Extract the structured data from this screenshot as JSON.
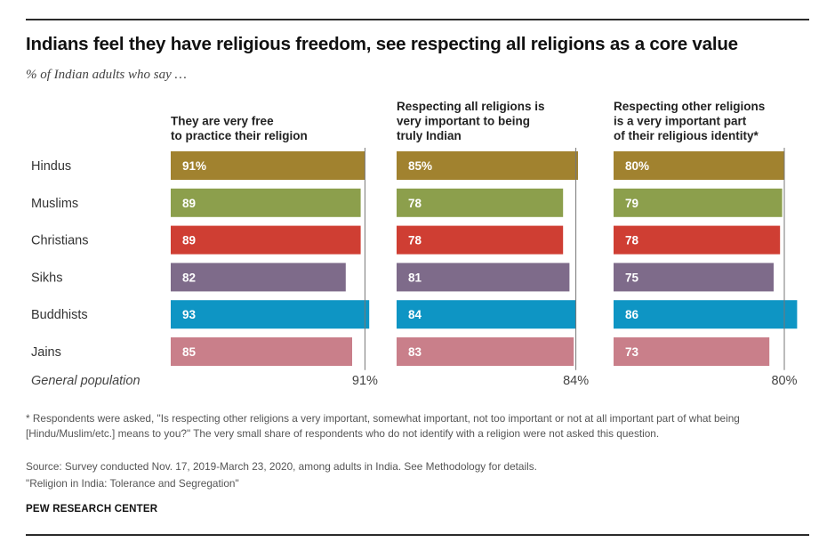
{
  "title": "Indians feel they have religious freedom, see respecting all religions as a core value",
  "subtitle": "% of Indian adults who say …",
  "chart_data": {
    "type": "bar",
    "orientation": "horizontal",
    "categories": [
      "Hindus",
      "Muslims",
      "Christians",
      "Sikhs",
      "Buddhists",
      "Jains"
    ],
    "value_labels": [
      [
        "91%",
        "89",
        "89",
        "82",
        "93",
        "85"
      ],
      [
        "85%",
        "78",
        "78",
        "81",
        "84",
        "83"
      ],
      [
        "80%",
        "79",
        "78",
        "75",
        "86",
        "73"
      ]
    ],
    "series": [
      {
        "name": "They are very free\nto practice their religion",
        "values": [
          91,
          89,
          89,
          82,
          93,
          85
        ],
        "reference_value": 91,
        "reference_label": "91%"
      },
      {
        "name": "Respecting all religions is\nvery important to being\ntruly Indian",
        "values": [
          85,
          78,
          78,
          81,
          84,
          83
        ],
        "reference_value": 84,
        "reference_label": "84%"
      },
      {
        "name": "Respecting other religions\nis a very important part\nof their religious identity*",
        "values": [
          80,
          79,
          78,
          75,
          86,
          73
        ],
        "reference_value": 80,
        "reference_label": "80%"
      }
    ],
    "reference_row_label": "General population",
    "colors": [
      "#a1822f",
      "#8c9f4c",
      "#cf3e33",
      "#7e6b8a",
      "#0e95c4",
      "#c97f8a"
    ],
    "reference_line_color": "#777777",
    "xlim": [
      0,
      100
    ]
  },
  "footnote": "* Respondents were asked, \"Is respecting other religions a very important, somewhat important, not too important or not at all important part of what being [Hindu/Muslim/etc.] means to you?\" The very small share of respondents who do not identify with a religion were not asked this question.",
  "source": "Source: Survey conducted Nov. 17, 2019-March 23, 2020, among adults in India. See Methodology for details.",
  "report": "\"Religion in India: Tolerance and Segregation\"",
  "brand": "PEW RESEARCH CENTER"
}
